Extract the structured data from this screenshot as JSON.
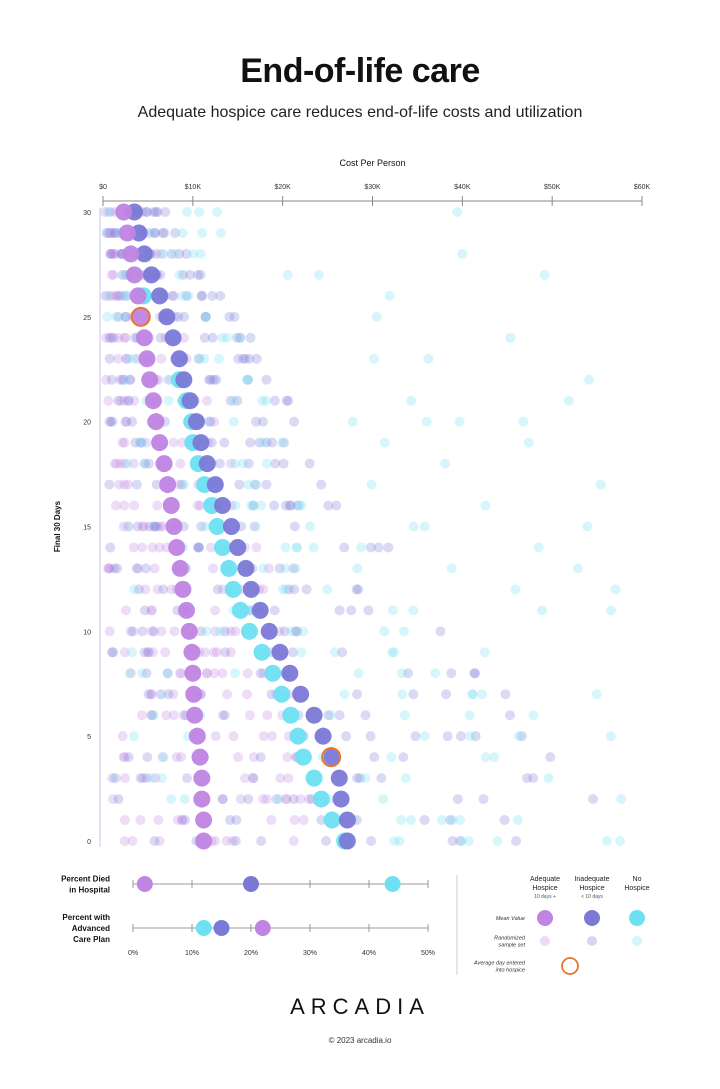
{
  "title": "End-of-life care",
  "subtitle": "Adequate hospice care reduces end-of-life costs and utilization",
  "brand": "ARCADIA",
  "copyright": "© 2023 arcadia.io",
  "colors": {
    "adequate": "#c084e3",
    "inadequate": "#7b79d6",
    "no_hospice": "#6ee0f2",
    "hospice_entry": "#e8762e",
    "axis": "#888888"
  },
  "chart_data": [
    {
      "type": "scatter",
      "xlabel": "Cost Per Person",
      "ylabel": "Final 30 Days",
      "x_ticks": [
        "$0",
        "$10K",
        "$20K",
        "$30K",
        "$40K",
        "$50K",
        "$60K"
      ],
      "y_ticks": [
        "0",
        "5",
        "10",
        "15",
        "20",
        "25",
        "30"
      ],
      "xlim": [
        0,
        60000
      ],
      "ylim": [
        0,
        30
      ],
      "legend_position": "bottom-right",
      "series": [
        {
          "name": "Adequate Hospice",
          "x": [
            30,
            29,
            28,
            27,
            26,
            25,
            24,
            23,
            22,
            21,
            20,
            19,
            18,
            17,
            16,
            15,
            14,
            13,
            12,
            11,
            10,
            9,
            8,
            7,
            6,
            5,
            4,
            3,
            2,
            1,
            0
          ],
          "y": [
            2300,
            2700,
            3100,
            3500,
            3900,
            4200,
            4600,
            4900,
            5200,
            5600,
            5900,
            6300,
            6800,
            7200,
            7600,
            7900,
            8200,
            8600,
            8900,
            9300,
            9600,
            9900,
            10000,
            10100,
            10200,
            10500,
            10800,
            11000,
            11000,
            11200,
            11200
          ]
        },
        {
          "name": "Inadequate Hospice",
          "x": [
            30,
            29,
            28,
            27,
            26,
            25,
            24,
            23,
            22,
            21,
            20,
            19,
            18,
            17,
            16,
            15,
            14,
            13,
            12,
            11,
            10,
            9,
            8,
            7,
            6,
            5,
            4,
            3,
            2,
            1,
            0
          ],
          "y": [
            3500,
            4000,
            4600,
            5400,
            6300,
            7100,
            7800,
            8500,
            9000,
            9700,
            10400,
            10900,
            11600,
            12500,
            13300,
            14300,
            15000,
            15900,
            16500,
            17500,
            18500,
            19700,
            20800,
            22000,
            23500,
            24500,
            25500,
            26300,
            26500,
            27200,
            27200
          ]
        },
        {
          "name": "No Hospice",
          "x": [
            26,
            22,
            21,
            20,
            19,
            18,
            17,
            16,
            15,
            14,
            13,
            12,
            11,
            10,
            9,
            8,
            7,
            6,
            5,
            4,
            3,
            2,
            1,
            0
          ],
          "y": [
            4500,
            8500,
            9300,
            9900,
            10000,
            10600,
            11300,
            12100,
            12700,
            13300,
            14000,
            14500,
            15300,
            16300,
            17700,
            18900,
            19900,
            20900,
            21700,
            22300,
            23500,
            24300,
            25500,
            26900
          ]
        }
      ],
      "average_day_entered_into_hospice": [
        {
          "series": "Adequate Hospice",
          "day": 25,
          "cost": 4200
        },
        {
          "series": "Inadequate Hospice",
          "day": 4,
          "cost": 25400
        }
      ]
    },
    {
      "type": "scatter",
      "x_ticks": [
        "0%",
        "10%",
        "20%",
        "30%",
        "40%",
        "50%"
      ],
      "xlim": [
        0,
        50
      ],
      "categories": [
        "Percent Died in Hospital",
        "Percent with Advanced Care Plan"
      ],
      "series": [
        {
          "name": "Adequate Hospice",
          "values": [
            2,
            22
          ]
        },
        {
          "name": "Inadequate Hospice",
          "values": [
            20,
            15
          ]
        },
        {
          "name": "No Hospice",
          "values": [
            44,
            12
          ]
        }
      ]
    }
  ],
  "legend": {
    "columns": [
      {
        "title_lines": [
          "Adequate",
          "Hospice"
        ],
        "note": "10 days +"
      },
      {
        "title_lines": [
          "Inadequate",
          "Hospice"
        ],
        "note": "< 10 days"
      },
      {
        "title_lines": [
          "No",
          "Hospice"
        ],
        "note": ""
      }
    ],
    "rows": [
      {
        "label_lines": [
          "Mean Value"
        ]
      },
      {
        "label_lines": [
          "Randomized",
          "sample set"
        ]
      },
      {
        "label_lines": [
          "Average day entered",
          "into hospice"
        ]
      }
    ]
  }
}
